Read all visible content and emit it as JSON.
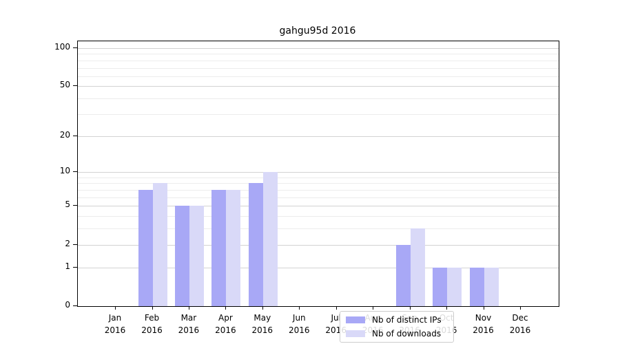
{
  "title": "gahgu95d 2016",
  "chart_data": {
    "type": "bar",
    "title": "gahgu95d 2016",
    "categories": [
      "Jan",
      "Feb",
      "Mar",
      "Apr",
      "May",
      "Jun",
      "Jul",
      "Aug",
      "Sep",
      "Oct",
      "Nov",
      "Dec"
    ],
    "year": "2016",
    "series": [
      {
        "name": "Nb of distinct IPs",
        "color": "#a8a8f6",
        "values": [
          0,
          7,
          5,
          7,
          8,
          0,
          0,
          0,
          2,
          1,
          1,
          0
        ]
      },
      {
        "name": "Nb of downloads",
        "color": "#d9d9f8",
        "values": [
          0,
          8,
          5,
          7,
          10,
          0,
          0,
          0,
          3,
          1,
          1,
          0
        ]
      }
    ],
    "xlabel": "",
    "ylabel": "",
    "y_scale": "log10(1+y)",
    "y_ticks": [
      0,
      1,
      2,
      5,
      10,
      20,
      50,
      100
    ],
    "y_minor_ticks": [
      3,
      4,
      6,
      7,
      8,
      9,
      30,
      40,
      60,
      70,
      80,
      90
    ],
    "ylim": [
      0,
      113
    ],
    "grid": true,
    "legend_position": "lower center"
  },
  "colors": {
    "grid_major": "#d2d2d2",
    "grid_minor": "#ececec",
    "axis": "#000000",
    "background": "#ffffff"
  }
}
